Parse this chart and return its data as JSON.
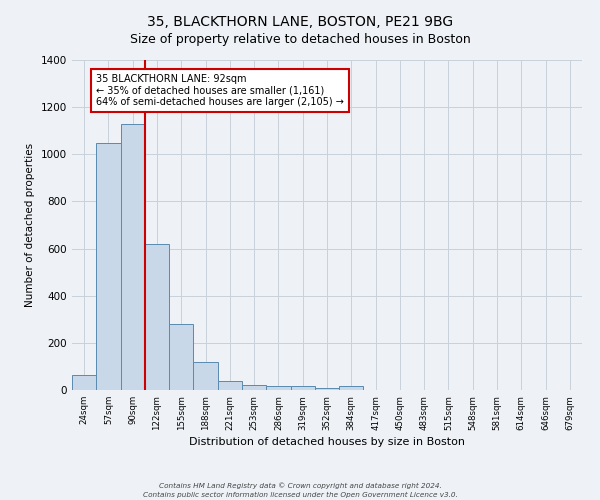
{
  "title": "35, BLACKTHORN LANE, BOSTON, PE21 9BG",
  "subtitle": "Size of property relative to detached houses in Boston",
  "xlabel": "Distribution of detached houses by size in Boston",
  "ylabel": "Number of detached properties",
  "bar_labels": [
    "24sqm",
    "57sqm",
    "90sqm",
    "122sqm",
    "155sqm",
    "188sqm",
    "221sqm",
    "253sqm",
    "286sqm",
    "319sqm",
    "352sqm",
    "384sqm",
    "417sqm",
    "450sqm",
    "483sqm",
    "515sqm",
    "548sqm",
    "581sqm",
    "614sqm",
    "646sqm",
    "679sqm"
  ],
  "bar_values": [
    65,
    1050,
    1130,
    620,
    280,
    120,
    40,
    20,
    15,
    15,
    10,
    15,
    0,
    0,
    0,
    0,
    0,
    0,
    0,
    0,
    0
  ],
  "bar_color": "#c8d8e8",
  "bar_edge_color": "#5a8ab0",
  "red_line_color": "#cc0000",
  "annotation_line1": "35 BLACKTHORN LANE: 92sqm",
  "annotation_line2": "← 35% of detached houses are smaller (1,161)",
  "annotation_line3": "64% of semi-detached houses are larger (2,105) →",
  "annotation_box_color": "#ffffff",
  "annotation_box_edge": "#cc0000",
  "ylim": [
    0,
    1400
  ],
  "yticks": [
    0,
    200,
    400,
    600,
    800,
    1000,
    1200,
    1400
  ],
  "footer_line1": "Contains HM Land Registry data © Crown copyright and database right 2024.",
  "footer_line2": "Contains public sector information licensed under the Open Government Licence v3.0.",
  "bg_color": "#eef2f7",
  "plot_bg_color": "#eef2f7",
  "grid_color": "#c8d0da",
  "title_fontsize": 10,
  "subtitle_fontsize": 9
}
